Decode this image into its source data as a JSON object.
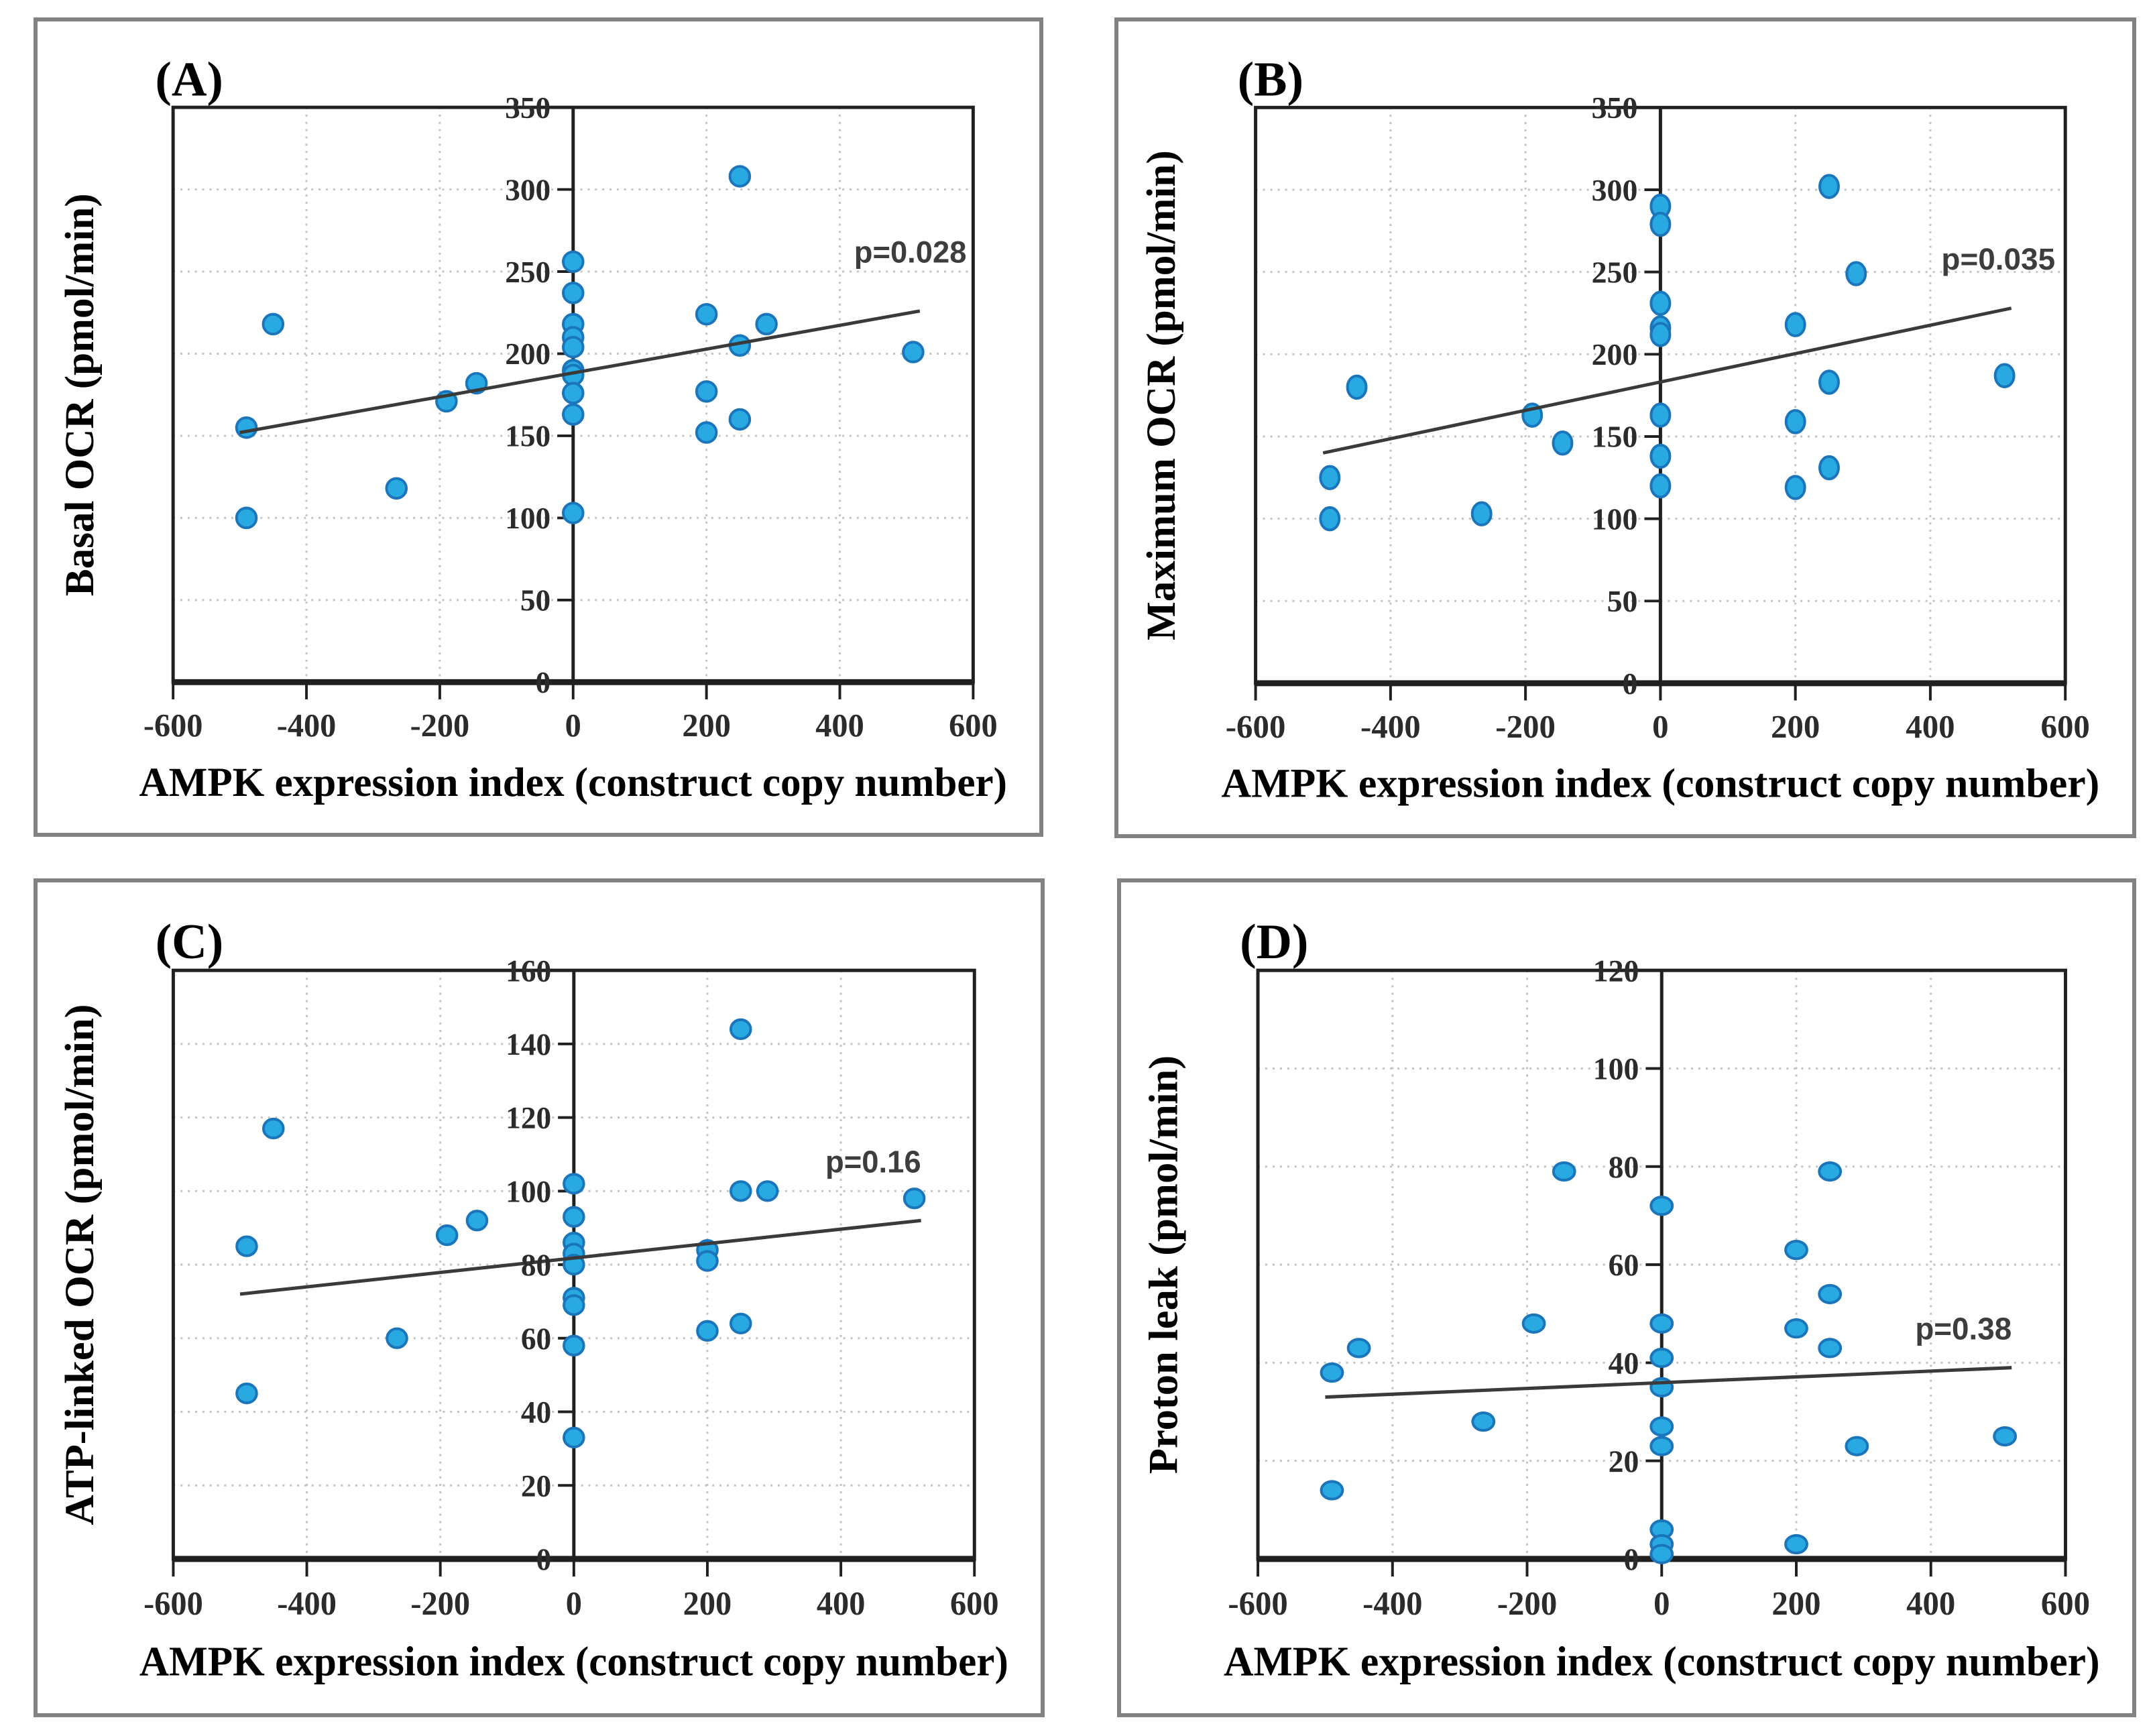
{
  "figure": {
    "background": "#ffffff",
    "panel_border_color": "#828282",
    "axis_color": "#202020",
    "grid_color": "#c3c3c3",
    "trend_color": "#3a3a3a",
    "marker_fill": "#29a9e1",
    "marker_stroke": "#1a75bb",
    "p_label_color": "#3d3d3d",
    "xlabel": "AMPK expression index (construct copy number)"
  },
  "chart_data": [
    {
      "type": "scatter",
      "panel_label": "(A)",
      "ylabel": "Basal OCR (pmol/min)",
      "xlabel": "AMPK expression index (construct copy number)",
      "p_label": "p=0.028",
      "p_label_pos": [
        590,
        262
      ],
      "xlim": [
        -600,
        600
      ],
      "ylim": [
        0,
        350
      ],
      "x_ticks": [
        -600,
        -400,
        -200,
        0,
        200,
        400,
        600
      ],
      "y_ticks": [
        0,
        50,
        100,
        150,
        200,
        250,
        300,
        350
      ],
      "grid": true,
      "legend": "none",
      "marker_size": [
        15,
        15
      ],
      "trend_line": {
        "x": [
          -500,
          520
        ],
        "y": [
          152,
          226
        ]
      },
      "points": [
        [
          -490,
          155
        ],
        [
          -490,
          100
        ],
        [
          -450,
          218
        ],
        [
          -265,
          118
        ],
        [
          -190,
          171
        ],
        [
          -145,
          182
        ],
        [
          0,
          256
        ],
        [
          0,
          237
        ],
        [
          0,
          218
        ],
        [
          0,
          210
        ],
        [
          0,
          204
        ],
        [
          0,
          190
        ],
        [
          0,
          187
        ],
        [
          0,
          176
        ],
        [
          0,
          163
        ],
        [
          0,
          103
        ],
        [
          200,
          224
        ],
        [
          200,
          177
        ],
        [
          200,
          152
        ],
        [
          250,
          308
        ],
        [
          250,
          205
        ],
        [
          250,
          160
        ],
        [
          290,
          218
        ],
        [
          510,
          201
        ]
      ]
    },
    {
      "type": "scatter",
      "panel_label": "(B)",
      "ylabel": "Maximum OCR (pmol/min)",
      "xlabel": "AMPK expression index (construct copy number)",
      "p_label": "p=0.035",
      "p_label_pos": [
        585,
        258
      ],
      "xlim": [
        -600,
        600
      ],
      "ylim": [
        0,
        350
      ],
      "x_ticks": [
        -600,
        -400,
        -200,
        0,
        200,
        400,
        600
      ],
      "y_ticks": [
        0,
        50,
        100,
        150,
        200,
        250,
        300,
        350
      ],
      "grid": true,
      "legend": "none",
      "marker_size": [
        14,
        17
      ],
      "trend_line": {
        "x": [
          -500,
          520
        ],
        "y": [
          140,
          228
        ]
      },
      "points": [
        [
          -490,
          125
        ],
        [
          -490,
          100
        ],
        [
          -450,
          180
        ],
        [
          -265,
          103
        ],
        [
          -190,
          163
        ],
        [
          -145,
          146
        ],
        [
          0,
          290
        ],
        [
          0,
          279
        ],
        [
          0,
          231
        ],
        [
          0,
          216
        ],
        [
          0,
          212
        ],
        [
          0,
          163
        ],
        [
          0,
          138
        ],
        [
          0,
          120
        ],
        [
          200,
          218
        ],
        [
          200,
          159
        ],
        [
          200,
          119
        ],
        [
          250,
          302
        ],
        [
          250,
          183
        ],
        [
          250,
          131
        ],
        [
          290,
          249
        ],
        [
          510,
          187
        ]
      ]
    },
    {
      "type": "scatter",
      "panel_label": "(C)",
      "ylabel": "ATP-linked OCR (pmol/min)",
      "xlabel": "AMPK expression index (construct copy number)",
      "p_label": "p=0.16",
      "p_label_pos": [
        520,
        108
      ],
      "xlim": [
        -600,
        600
      ],
      "ylim": [
        0,
        160
      ],
      "x_ticks": [
        -600,
        -400,
        -200,
        0,
        200,
        400,
        600
      ],
      "y_ticks": [
        0,
        20,
        40,
        60,
        80,
        100,
        120,
        140,
        160
      ],
      "grid": true,
      "legend": "none",
      "marker_size": [
        15,
        14
      ],
      "trend_line": {
        "x": [
          -500,
          520
        ],
        "y": [
          72,
          92
        ]
      },
      "points": [
        [
          -490,
          85
        ],
        [
          -490,
          45
        ],
        [
          -450,
          117
        ],
        [
          -265,
          60
        ],
        [
          -190,
          88
        ],
        [
          -145,
          92
        ],
        [
          0,
          102
        ],
        [
          0,
          93
        ],
        [
          0,
          86
        ],
        [
          0,
          83
        ],
        [
          0,
          80
        ],
        [
          0,
          71
        ],
        [
          0,
          69
        ],
        [
          0,
          58
        ],
        [
          0,
          33
        ],
        [
          200,
          84
        ],
        [
          200,
          81
        ],
        [
          200,
          62
        ],
        [
          250,
          144
        ],
        [
          250,
          100
        ],
        [
          250,
          64
        ],
        [
          290,
          100
        ],
        [
          510,
          98
        ]
      ]
    },
    {
      "type": "scatter",
      "panel_label": "(D)",
      "ylabel": "Proton leak (pmol/min)",
      "xlabel": "AMPK expression index (construct copy number)",
      "p_label": "p=0.38",
      "p_label_pos": [
        520,
        47
      ],
      "xlim": [
        -600,
        600
      ],
      "ylim": [
        0,
        120
      ],
      "x_ticks": [
        -600,
        -400,
        -200,
        0,
        200,
        400,
        600
      ],
      "y_ticks": [
        0,
        20,
        40,
        60,
        80,
        100,
        120
      ],
      "grid": true,
      "legend": "none",
      "marker_size": [
        16,
        13
      ],
      "trend_line": {
        "x": [
          -500,
          520
        ],
        "y": [
          33,
          39
        ]
      },
      "points": [
        [
          -490,
          38
        ],
        [
          -490,
          14
        ],
        [
          -450,
          43
        ],
        [
          -265,
          28
        ],
        [
          -190,
          48
        ],
        [
          -145,
          79
        ],
        [
          0,
          72
        ],
        [
          0,
          48
        ],
        [
          0,
          41
        ],
        [
          0,
          35
        ],
        [
          0,
          27
        ],
        [
          0,
          23
        ],
        [
          0,
          6
        ],
        [
          0,
          3
        ],
        [
          0,
          1
        ],
        [
          200,
          63
        ],
        [
          200,
          47
        ],
        [
          200,
          3
        ],
        [
          250,
          79
        ],
        [
          250,
          54
        ],
        [
          250,
          43
        ],
        [
          290,
          23
        ],
        [
          510,
          25
        ]
      ]
    }
  ]
}
